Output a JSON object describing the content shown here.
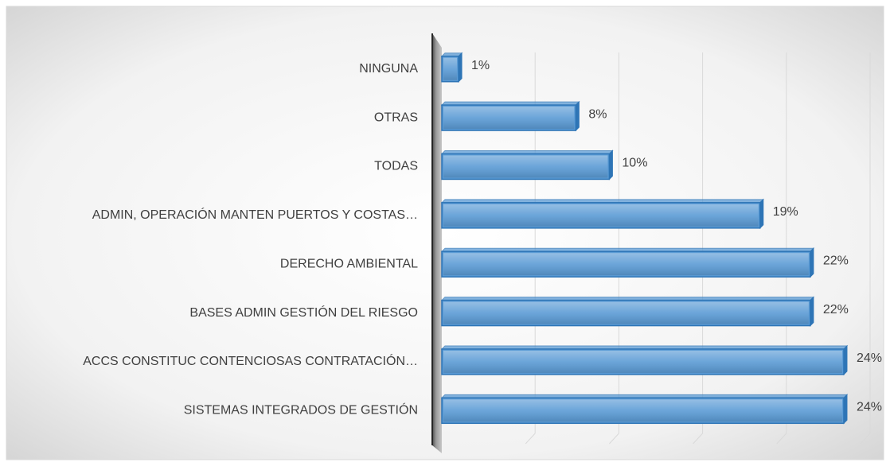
{
  "chart_data": {
    "type": "bar",
    "orientation": "horizontal",
    "categories": [
      "NINGUNA",
      "OTRAS",
      "TODAS",
      "ADMIN, OPERACIÓN MANTEN PUERTOS Y COSTAS…",
      "DERECHO AMBIENTAL",
      "BASES ADMIN GESTIÓN DEL RIESGO",
      "ACCS CONSTITUC CONTENCIOSAS CONTRATACIÓN…",
      "SISTEMAS INTEGRADOS DE GESTIÓN"
    ],
    "values": [
      1,
      8,
      10,
      19,
      22,
      22,
      24,
      24
    ],
    "value_labels": [
      "1%",
      "8%",
      "10%",
      "19%",
      "22%",
      "22%",
      "24%",
      "24%"
    ],
    "color": "#5b9bd5",
    "xlim": [
      0,
      25
    ],
    "xticks": [
      5,
      10,
      15,
      20,
      25
    ],
    "grid": true
  }
}
